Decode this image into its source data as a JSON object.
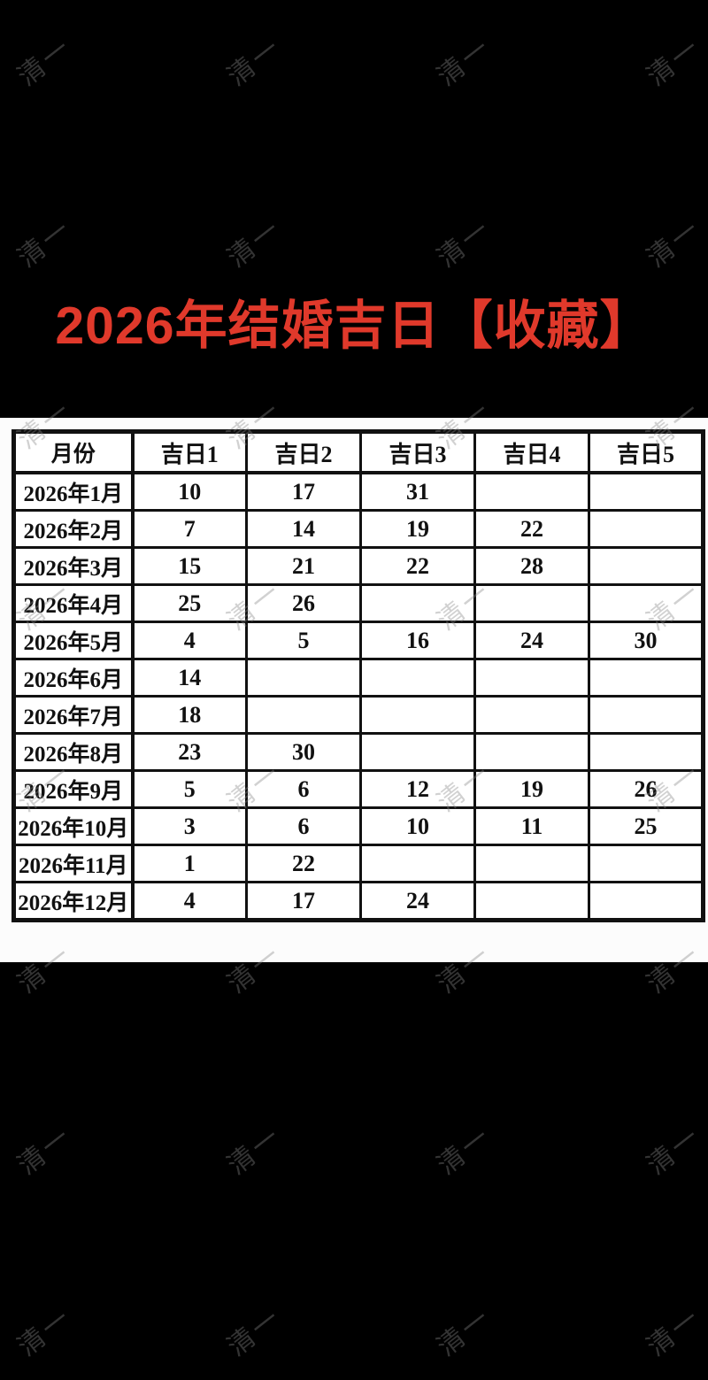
{
  "title": "2026年结婚吉日【收藏】",
  "accent_color": "#e0392b",
  "watermark": {
    "text": "清一"
  },
  "table": {
    "headers": [
      "月份",
      "吉日1",
      "吉日2",
      "吉日3",
      "吉日4",
      "吉日5"
    ],
    "rows": [
      {
        "month": "2026年1月",
        "days": [
          "10",
          "17",
          "31",
          "",
          ""
        ]
      },
      {
        "month": "2026年2月",
        "days": [
          "7",
          "14",
          "19",
          "22",
          ""
        ]
      },
      {
        "month": "2026年3月",
        "days": [
          "15",
          "21",
          "22",
          "28",
          ""
        ]
      },
      {
        "month": "2026年4月",
        "days": [
          "25",
          "26",
          "",
          "",
          ""
        ]
      },
      {
        "month": "2026年5月",
        "days": [
          "4",
          "5",
          "16",
          "24",
          "30"
        ]
      },
      {
        "month": "2026年6月",
        "days": [
          "14",
          "",
          "",
          "",
          ""
        ]
      },
      {
        "month": "2026年7月",
        "days": [
          "18",
          "",
          "",
          "",
          ""
        ]
      },
      {
        "month": "2026年8月",
        "days": [
          "23",
          "30",
          "",
          "",
          ""
        ]
      },
      {
        "month": "2026年9月",
        "days": [
          "5",
          "6",
          "12",
          "19",
          "26"
        ]
      },
      {
        "month": "2026年10月",
        "days": [
          "3",
          "6",
          "10",
          "11",
          "25"
        ]
      },
      {
        "month": "2026年11月",
        "days": [
          "1",
          "22",
          "",
          "",
          ""
        ]
      },
      {
        "month": "2026年12月",
        "days": [
          "4",
          "17",
          "24",
          "",
          ""
        ]
      }
    ]
  }
}
